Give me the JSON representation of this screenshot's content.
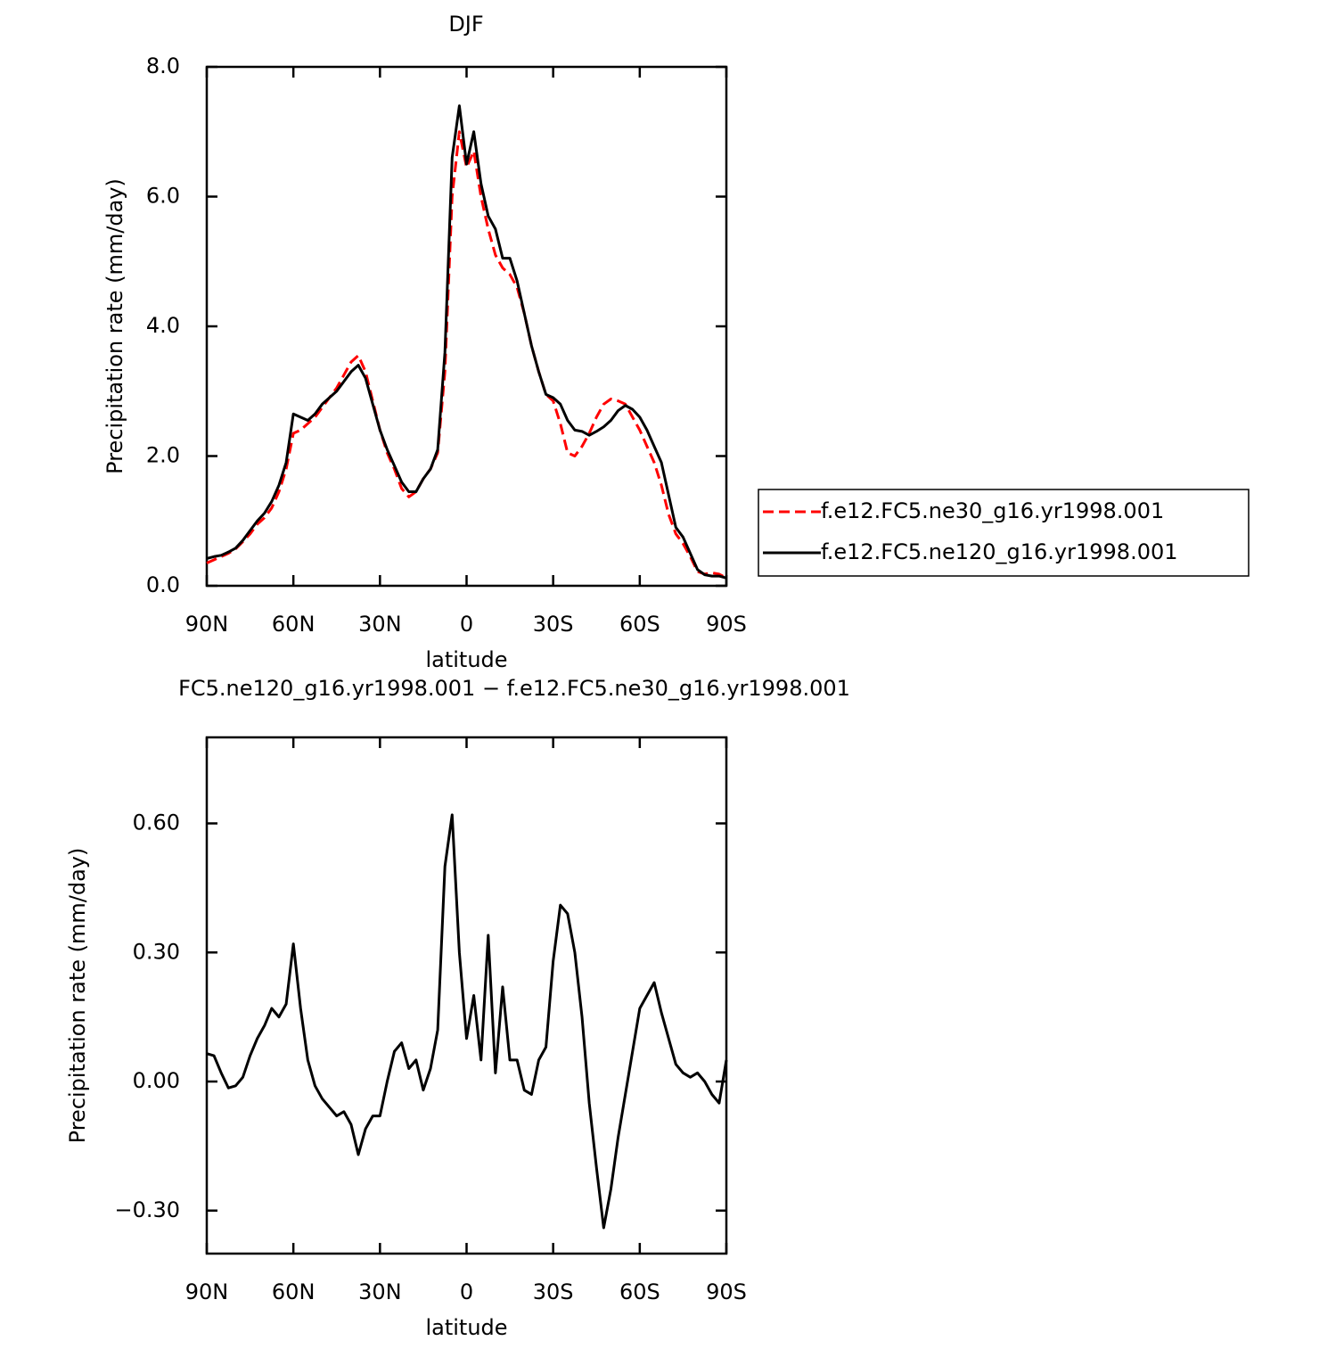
{
  "chart_data": [
    {
      "type": "line",
      "title": "DJF",
      "xlabel": "latitude",
      "ylabel": "Precipitation rate (mm/day)",
      "x": [
        90,
        87.5,
        85,
        82.5,
        80,
        77.5,
        75,
        72.5,
        70,
        67.5,
        65,
        62.5,
        60,
        57.5,
        55,
        52.5,
        50,
        47.5,
        45,
        42.5,
        40,
        37.5,
        35,
        32.5,
        30,
        27.5,
        25,
        22.5,
        20,
        17.5,
        15,
        12.5,
        10,
        7.5,
        5,
        2.5,
        0,
        -2.5,
        -5,
        -7.5,
        -10,
        -12.5,
        -15,
        -17.5,
        -20,
        -22.5,
        -25,
        -27.5,
        -30,
        -32.5,
        -35,
        -37.5,
        -40,
        -42.5,
        -45,
        -47.5,
        -50,
        -52.5,
        -55,
        -57.5,
        -60,
        -62.5,
        -65,
        -67.5,
        -70,
        -72.5,
        -75,
        -77.5,
        -80,
        -82.5,
        -85,
        -87.5,
        -90
      ],
      "series": [
        {
          "name": "f.e12.FC5.ne30_g16.yr1998.001",
          "color": "#ff0000",
          "style": "dashed",
          "values": [
            0.35,
            0.4,
            0.45,
            0.5,
            0.57,
            0.68,
            0.8,
            0.95,
            1.05,
            1.2,
            1.45,
            1.8,
            2.35,
            2.4,
            2.5,
            2.6,
            2.75,
            2.9,
            3.05,
            3.25,
            3.45,
            3.55,
            3.3,
            2.85,
            2.4,
            2.05,
            1.8,
            1.5,
            1.37,
            1.45,
            1.65,
            1.8,
            2.05,
            3.3,
            6.0,
            7.0,
            6.45,
            6.7,
            6.0,
            5.5,
            5.1,
            4.9,
            4.8,
            4.6,
            4.2,
            3.7,
            3.3,
            2.95,
            2.85,
            2.5,
            2.05,
            2.0,
            2.15,
            2.35,
            2.6,
            2.8,
            2.88,
            2.85,
            2.8,
            2.6,
            2.4,
            2.15,
            1.9,
            1.55,
            1.1,
            0.8,
            0.65,
            0.45,
            0.22,
            0.18,
            0.2,
            0.18,
            0.12
          ]
        },
        {
          "name": "f.e12.FC5.ne120_g16.yr1998.001",
          "color": "#000000",
          "style": "solid",
          "values": [
            0.42,
            0.45,
            0.47,
            0.52,
            0.58,
            0.7,
            0.85,
            1.0,
            1.12,
            1.3,
            1.55,
            1.9,
            2.65,
            2.6,
            2.55,
            2.65,
            2.8,
            2.9,
            3.0,
            3.15,
            3.3,
            3.4,
            3.2,
            2.8,
            2.4,
            2.1,
            1.85,
            1.6,
            1.45,
            1.45,
            1.65,
            1.8,
            2.1,
            3.6,
            6.6,
            7.4,
            6.5,
            7.0,
            6.2,
            5.7,
            5.5,
            5.05,
            5.05,
            4.7,
            4.2,
            3.7,
            3.3,
            2.95,
            2.9,
            2.8,
            2.55,
            2.4,
            2.38,
            2.32,
            2.38,
            2.45,
            2.55,
            2.7,
            2.78,
            2.72,
            2.6,
            2.4,
            2.15,
            1.9,
            1.4,
            0.9,
            0.75,
            0.5,
            0.25,
            0.17,
            0.15,
            0.15,
            0.12
          ]
        }
      ],
      "xlim": [
        90,
        -90
      ],
      "xticks": [
        {
          "value": 90,
          "label": "90N"
        },
        {
          "value": 60,
          "label": "60N"
        },
        {
          "value": 30,
          "label": "30N"
        },
        0,
        {
          "value": -30,
          "label": "30S"
        },
        {
          "value": -60,
          "label": "60S"
        },
        {
          "value": -90,
          "label": "90S"
        }
      ],
      "ylim": [
        0,
        8
      ],
      "yticks": [
        {
          "value": 0,
          "label": "0.0"
        },
        {
          "value": 2,
          "label": "2.0"
        },
        {
          "value": 4,
          "label": "4.0"
        },
        {
          "value": 6,
          "label": "6.0"
        },
        {
          "value": 8,
          "label": "8.0"
        }
      ],
      "legend": "right"
    },
    {
      "type": "line",
      "title": "FC5.ne120_g16.yr1998.001 − f.e12.FC5.ne30_g16.yr1998.001",
      "xlabel": "latitude",
      "ylabel": "Precipitation rate (mm/day)",
      "x": [
        90,
        87.5,
        85,
        82.5,
        80,
        77.5,
        75,
        72.5,
        70,
        67.5,
        65,
        62.5,
        60,
        57.5,
        55,
        52.5,
        50,
        47.5,
        45,
        42.5,
        40,
        37.5,
        35,
        32.5,
        30,
        27.5,
        25,
        22.5,
        20,
        17.5,
        15,
        12.5,
        10,
        7.5,
        5,
        2.5,
        0,
        -2.5,
        -5,
        -7.5,
        -10,
        -12.5,
        -15,
        -17.5,
        -20,
        -22.5,
        -25,
        -27.5,
        -30,
        -32.5,
        -35,
        -37.5,
        -40,
        -42.5,
        -45,
        -47.5,
        -50,
        -52.5,
        -55,
        -57.5,
        -60,
        -62.5,
        -65,
        -67.5,
        -70,
        -72.5,
        -75,
        -77.5,
        -80,
        -82.5,
        -85,
        -87.5,
        -90
      ],
      "color": "#000000",
      "values": [
        0.065,
        0.06,
        0.02,
        -0.015,
        -0.01,
        0.01,
        0.06,
        0.1,
        0.13,
        0.17,
        0.15,
        0.18,
        0.32,
        0.17,
        0.05,
        -0.01,
        -0.04,
        -0.06,
        -0.08,
        -0.07,
        -0.1,
        -0.17,
        -0.11,
        -0.08,
        -0.08,
        0.0,
        0.07,
        0.09,
        0.03,
        0.05,
        -0.02,
        0.03,
        0.12,
        0.5,
        0.62,
        0.3,
        0.1,
        0.2,
        0.05,
        0.34,
        0.02,
        0.22,
        0.05,
        0.05,
        -0.02,
        -0.03,
        0.05,
        0.08,
        0.28,
        0.41,
        0.39,
        0.3,
        0.15,
        -0.05,
        -0.2,
        -0.34,
        -0.25,
        -0.13,
        -0.03,
        0.07,
        0.17,
        0.2,
        0.23,
        0.16,
        0.1,
        0.04,
        0.02,
        0.01,
        0.02,
        0.0,
        -0.03,
        -0.05,
        0.05
      ],
      "xlim": [
        90,
        -90
      ],
      "xticks": [
        {
          "value": 90,
          "label": "90N"
        },
        {
          "value": 60,
          "label": "60N"
        },
        {
          "value": 30,
          "label": "30N"
        },
        0,
        {
          "value": -30,
          "label": "30S"
        },
        {
          "value": -60,
          "label": "60S"
        },
        {
          "value": -90,
          "label": "90S"
        }
      ],
      "ylim": [
        -0.4,
        0.8
      ],
      "yticks": [
        {
          "value": -0.3,
          "label": "−0.30"
        },
        {
          "value": 0,
          "label": "0.00"
        },
        {
          "value": 0.3,
          "label": "0.30"
        },
        {
          "value": 0.6,
          "label": "0.60"
        }
      ]
    }
  ]
}
